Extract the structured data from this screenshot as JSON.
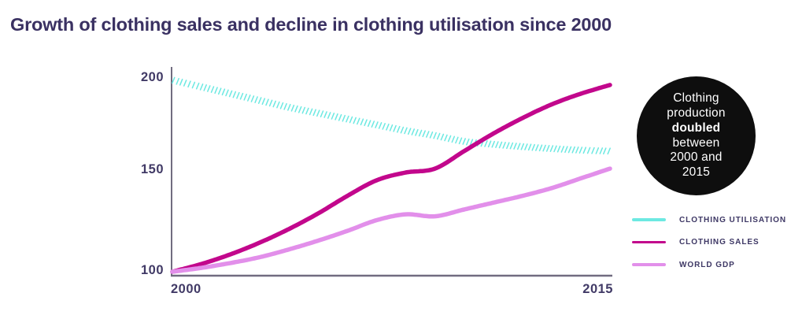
{
  "title": "Growth of clothing sales and decline in clothing utilisation since 2000",
  "badge": {
    "lines": [
      "Clothing",
      "production",
      "doubled",
      "between",
      "2000 and",
      "2015"
    ],
    "bg_color": "#0e0e0e",
    "text_color": "#ffffff"
  },
  "legend": {
    "items": [
      {
        "label": "CLOTHING UTILISATION",
        "color": "#6de9e2",
        "swatch_style": "solid"
      },
      {
        "label": "CLOTHING SALES",
        "color": "#c2078c",
        "swatch_style": "solid"
      },
      {
        "label": "WORLD GDP",
        "color": "#e28fea",
        "swatch_style": "solid"
      }
    ]
  },
  "chart_data": {
    "type": "line",
    "title": "Growth of clothing sales and decline in clothing utilisation since 2000",
    "xlabel": "",
    "ylabel": "",
    "x": [
      2000,
      2001,
      2002,
      2003,
      2004,
      2005,
      2006,
      2007,
      2008,
      2009,
      2010,
      2011,
      2012,
      2013,
      2014,
      2015
    ],
    "series": [
      {
        "name": "Clothing utilisation",
        "color": "#6de9e2",
        "line_style": "hatched",
        "values": [
          198.5,
          195,
          191.5,
          188,
          184.5,
          181.5,
          178.5,
          175.5,
          172.5,
          170,
          167,
          165.5,
          164.3,
          163.3,
          162.5,
          162
        ]
      },
      {
        "name": "Clothing sales",
        "color": "#c2078c",
        "line_style": "solid",
        "values": [
          100,
          104,
          109,
          115,
          122,
          130,
          139,
          147,
          151,
          153,
          162,
          171,
          179,
          186,
          191.5,
          196
        ]
      },
      {
        "name": "World GDP",
        "color": "#e28fea",
        "line_style": "solid",
        "values": [
          100,
          102,
          104.5,
          107.5,
          111.5,
          116,
          121,
          126.5,
          129.5,
          128.5,
          132,
          135.5,
          139,
          143,
          148,
          153
        ]
      }
    ],
    "xlim": [
      2000,
      2015
    ],
    "ylim": [
      100,
      200
    ],
    "x_ticks": [
      "2000",
      "2015"
    ],
    "y_ticks": [
      "200",
      "150",
      "100"
    ],
    "grid": false,
    "legend_position": "right",
    "axis_color": "#716c80"
  }
}
